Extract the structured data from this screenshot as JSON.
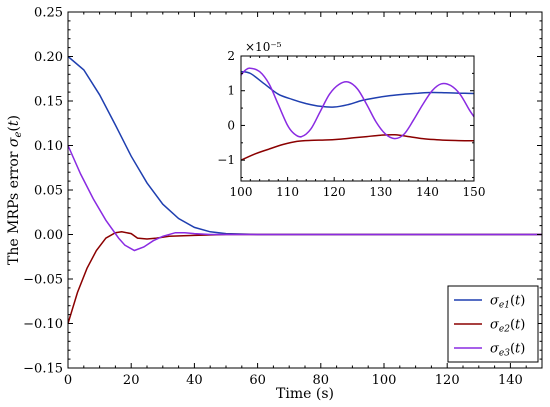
{
  "chart_data": [
    {
      "type": "line",
      "xlabel": "Time (s)",
      "ylabel": "The MRPs error σ_e(t)",
      "xlim": [
        0,
        150
      ],
      "ylim": [
        -0.15,
        0.25
      ],
      "x_ticks": [
        0,
        20,
        40,
        60,
        80,
        100,
        120,
        140
      ],
      "y_ticks": [
        -0.15,
        -0.1,
        -0.05,
        0.0,
        0.05,
        0.1,
        0.15,
        0.2,
        0.25
      ],
      "x_tick_labels": [
        "0",
        "20",
        "40",
        "60",
        "80",
        "100",
        "120",
        "140"
      ],
      "y_tick_labels": [
        "−0.15",
        "−0.10",
        "−0.05",
        "0.00",
        "0.05",
        "0.10",
        "0.15",
        "0.20",
        "0.25"
      ],
      "legend_position": "bottom-right",
      "series": [
        {
          "name": "σe1(t)",
          "color": "#1f3fb0",
          "points": [
            [
              0,
              0.2
            ],
            [
              5,
              0.185
            ],
            [
              10,
              0.157
            ],
            [
              15,
              0.123
            ],
            [
              20,
              0.088
            ],
            [
              25,
              0.058
            ],
            [
              30,
              0.034
            ],
            [
              35,
              0.018
            ],
            [
              40,
              0.008
            ],
            [
              45,
              0.003
            ],
            [
              50,
              0.001
            ],
            [
              60,
              0.0
            ],
            [
              80,
              0.0
            ],
            [
              100,
              0.0
            ],
            [
              150,
              0.0
            ]
          ]
        },
        {
          "name": "σe2(t)",
          "color": "#8b0000",
          "points": [
            [
              0,
              -0.1
            ],
            [
              3,
              -0.065
            ],
            [
              6,
              -0.038
            ],
            [
              9,
              -0.018
            ],
            [
              12,
              -0.004
            ],
            [
              15,
              0.002
            ],
            [
              17,
              0.003
            ],
            [
              20,
              0.001
            ],
            [
              22,
              -0.004
            ],
            [
              25,
              -0.005
            ],
            [
              28,
              -0.004
            ],
            [
              32,
              -0.002
            ],
            [
              40,
              -0.001
            ],
            [
              50,
              0.0
            ],
            [
              60,
              0.0
            ],
            [
              150,
              0.0
            ]
          ]
        },
        {
          "name": "σe3(t)",
          "color": "#8a2be2",
          "points": [
            [
              0,
              0.1
            ],
            [
              4,
              0.068
            ],
            [
              8,
              0.04
            ],
            [
              12,
              0.016
            ],
            [
              16,
              -0.004
            ],
            [
              18,
              -0.012
            ],
            [
              21,
              -0.018
            ],
            [
              24,
              -0.014
            ],
            [
              27,
              -0.007
            ],
            [
              30,
              -0.002
            ],
            [
              34,
              0.002
            ],
            [
              37,
              0.002
            ],
            [
              40,
              0.001
            ],
            [
              45,
              0.0
            ],
            [
              50,
              0.0
            ],
            [
              150,
              0.0
            ]
          ]
        }
      ]
    },
    {
      "type": "line",
      "inset": true,
      "xlim": [
        100,
        150
      ],
      "ylim": [
        -1.6,
        2.0
      ],
      "scale_label": "×10⁻⁵",
      "x_ticks": [
        100,
        110,
        120,
        130,
        140,
        150
      ],
      "y_ticks": [
        -1,
        0,
        1,
        2
      ],
      "x_tick_labels": [
        "100",
        "110",
        "120",
        "130",
        "140",
        "150"
      ],
      "y_tick_labels": [
        "−1",
        "0",
        "1",
        "2"
      ],
      "series": [
        {
          "name": "σe1(t)",
          "color": "#1f3fb0",
          "points": [
            [
              100,
              1.55
            ],
            [
              102,
              1.5
            ],
            [
              105,
              1.2
            ],
            [
              108,
              0.9
            ],
            [
              111,
              0.75
            ],
            [
              114,
              0.63
            ],
            [
              117,
              0.55
            ],
            [
              120,
              0.53
            ],
            [
              123,
              0.6
            ],
            [
              126,
              0.72
            ],
            [
              129,
              0.8
            ],
            [
              132,
              0.86
            ],
            [
              135,
              0.9
            ],
            [
              138,
              0.93
            ],
            [
              141,
              0.95
            ],
            [
              144,
              0.94
            ],
            [
              147,
              0.93
            ],
            [
              150,
              0.92
            ]
          ]
        },
        {
          "name": "σe2(t)",
          "color": "#8b0000",
          "points": [
            [
              100,
              -1.0
            ],
            [
              103,
              -0.82
            ],
            [
              106,
              -0.68
            ],
            [
              109,
              -0.55
            ],
            [
              112,
              -0.46
            ],
            [
              115,
              -0.43
            ],
            [
              118,
              -0.42
            ],
            [
              121,
              -0.4
            ],
            [
              124,
              -0.36
            ],
            [
              127,
              -0.32
            ],
            [
              130,
              -0.28
            ],
            [
              133,
              -0.27
            ],
            [
              136,
              -0.32
            ],
            [
              139,
              -0.38
            ],
            [
              142,
              -0.41
            ],
            [
              145,
              -0.43
            ],
            [
              148,
              -0.44
            ],
            [
              150,
              -0.44
            ]
          ]
        },
        {
          "name": "σe3(t)",
          "color": "#8a2be2",
          "points": [
            [
              100,
              1.45
            ],
            [
              101,
              1.6
            ],
            [
              102,
              1.65
            ],
            [
              104,
              1.55
            ],
            [
              106,
              1.2
            ],
            [
              108,
              0.6
            ],
            [
              110,
              0.0
            ],
            [
              111.5,
              -0.25
            ],
            [
              113,
              -0.32
            ],
            [
              115,
              -0.1
            ],
            [
              117,
              0.4
            ],
            [
              119,
              0.9
            ],
            [
              121,
              1.18
            ],
            [
              123,
              1.25
            ],
            [
              125,
              1.05
            ],
            [
              127,
              0.6
            ],
            [
              129,
              0.1
            ],
            [
              131,
              -0.25
            ],
            [
              133,
              -0.38
            ],
            [
              135,
              -0.25
            ],
            [
              137,
              0.15
            ],
            [
              139,
              0.6
            ],
            [
              141,
              1.0
            ],
            [
              143,
              1.2
            ],
            [
              145,
              1.15
            ],
            [
              147,
              0.9
            ],
            [
              149,
              0.45
            ],
            [
              150,
              0.25
            ]
          ]
        }
      ]
    }
  ]
}
